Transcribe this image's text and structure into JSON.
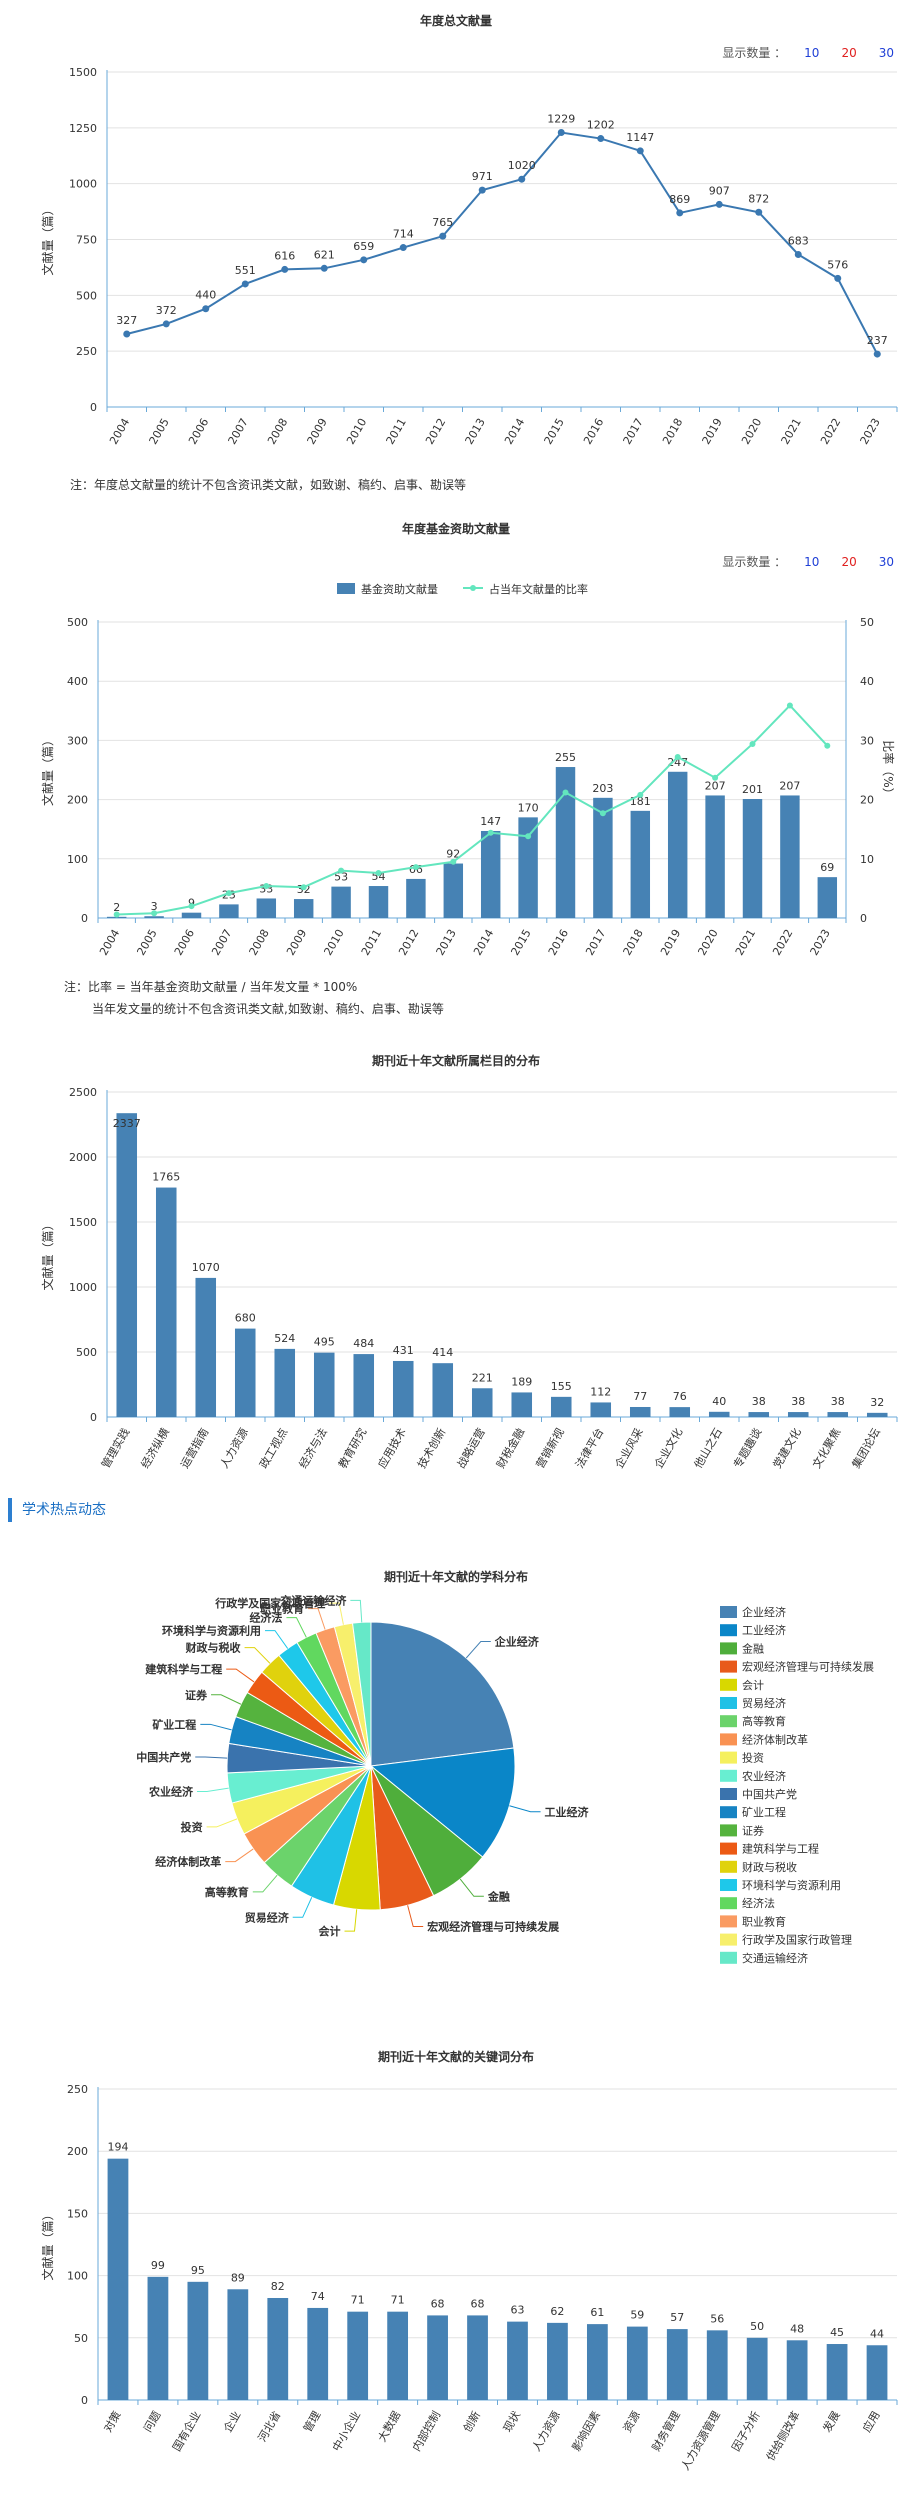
{
  "chart_data": [
    {
      "type": "line",
      "title": "年度总文献量",
      "ylabel": "文献量（篇）",
      "xlabel": "",
      "ylim": [
        0,
        1500
      ],
      "yticks": [
        0,
        250,
        500,
        750,
        1000,
        1250,
        1500
      ],
      "categories": [
        "2004",
        "2005",
        "2006",
        "2007",
        "2008",
        "2009",
        "2010",
        "2011",
        "2012",
        "2013",
        "2014",
        "2015",
        "2016",
        "2017",
        "2018",
        "2019",
        "2020",
        "2021",
        "2022",
        "2023"
      ],
      "values": [
        327,
        372,
        440,
        551,
        616,
        621,
        659,
        714,
        765,
        971,
        1020,
        1229,
        1202,
        1147,
        869,
        907,
        872,
        683,
        576,
        237
      ],
      "color": "#3a78b1"
    },
    {
      "type": "bar",
      "title": "年度基金资助文献量",
      "ylabel": "文献量（篇）",
      "y2label": "比率（%）",
      "ylim": [
        0,
        500
      ],
      "y2lim": [
        0,
        50
      ],
      "yticks": [
        0,
        100,
        200,
        300,
        400,
        500
      ],
      "y2ticks": [
        0,
        10,
        20,
        30,
        40,
        50
      ],
      "categories": [
        "2004",
        "2005",
        "2006",
        "2007",
        "2008",
        "2009",
        "2010",
        "2011",
        "2012",
        "2013",
        "2014",
        "2015",
        "2016",
        "2017",
        "2018",
        "2019",
        "2020",
        "2021",
        "2022",
        "2023"
      ],
      "series": [
        {
          "name": "基金资助文献量",
          "type": "bar",
          "color": "#4682b4",
          "values": [
            2,
            3,
            9,
            23,
            33,
            32,
            53,
            54,
            66,
            92,
            147,
            170,
            255,
            203,
            181,
            247,
            207,
            201,
            207,
            69
          ]
        },
        {
          "name": "占当年文献量的比率",
          "type": "line",
          "color": "#63e6be",
          "values": [
            0.6,
            0.8,
            2.0,
            4.2,
            5.4,
            5.2,
            8.0,
            7.6,
            8.6,
            9.5,
            14.4,
            13.8,
            21.2,
            17.7,
            20.8,
            27.2,
            23.7,
            29.4,
            35.9,
            29.1
          ]
        }
      ]
    },
    {
      "type": "bar",
      "title": "期刊近十年文献所属栏目的分布",
      "ylabel": "文献量（篇）",
      "ylim": [
        0,
        2500
      ],
      "yticks": [
        0,
        500,
        1000,
        1500,
        2000,
        2500
      ],
      "categories": [
        "管理实践",
        "经济纵横",
        "运营指南",
        "人力资源",
        "政工视点",
        "经济与法",
        "教育研究",
        "应用技术",
        "技术创新",
        "战略运营",
        "财税金融",
        "营销新视",
        "法律平台",
        "企业风采",
        "企业文化",
        "他山之石",
        "专题趣谈",
        "党建文化",
        "文化聚焦",
        "集团论坛"
      ],
      "values": [
        2337,
        1765,
        1070,
        680,
        524,
        495,
        484,
        431,
        414,
        221,
        189,
        155,
        112,
        77,
        76,
        40,
        38,
        38,
        38,
        32
      ],
      "color": "#4682b4"
    },
    {
      "type": "pie",
      "title": "期刊近十年文献的学科分布",
      "labels": [
        "企业经济",
        "工业经济",
        "金融",
        "宏观经济管理与可持续发展",
        "会计",
        "贸易经济",
        "高等教育",
        "经济体制改革",
        "投资",
        "农业经济",
        "中国共产党",
        "矿业工程",
        "证券",
        "建筑科学与工程",
        "财政与税收",
        "环境科学与资源利用",
        "经济法",
        "职业教育",
        "行政学及国家行政管理",
        "交通运输经济"
      ],
      "values": [
        22.5,
        12.6,
        6.8,
        6.0,
        5.1,
        5.0,
        3.9,
        3.8,
        3.6,
        3.3,
        3.2,
        3.0,
        2.9,
        2.7,
        2.6,
        2.4,
        2.3,
        2.1,
        2.0,
        2.0
      ],
      "colors": [
        "#4682b4",
        "#0a86c8",
        "#4fae3b",
        "#e85a1b",
        "#d8d800",
        "#1fc1e6",
        "#6bd36b",
        "#f99253",
        "#f5f05e",
        "#68eed1",
        "#3a73ad",
        "#1683c3",
        "#55b33e",
        "#ec5a14",
        "#e0d20d",
        "#1ec8ea",
        "#61d85f",
        "#fa9b62",
        "#f7ef6c",
        "#66e8c8"
      ]
    },
    {
      "type": "bar",
      "title": "期刊近十年文献的关键词分布",
      "ylabel": "文献量（篇）",
      "ylim": [
        0,
        250
      ],
      "yticks": [
        0,
        50,
        100,
        150,
        200,
        250
      ],
      "categories": [
        "对策",
        "问题",
        "国有企业",
        "企业",
        "河北省",
        "管理",
        "中小企业",
        "大数据",
        "内部控制",
        "创新",
        "现状",
        "人力资源",
        "影响因素",
        "资源",
        "财务管理",
        "人力资源管理",
        "因子分析",
        "供给侧改革",
        "发展",
        "应用"
      ],
      "values": [
        194,
        99,
        95,
        89,
        82,
        74,
        71,
        71,
        68,
        68,
        63,
        62,
        61,
        59,
        57,
        56,
        50,
        48,
        45,
        44
      ],
      "color": "#4682b4"
    }
  ],
  "ui": {
    "count_label": "显示数量 ：",
    "count_options": [
      "10",
      "20",
      "30"
    ],
    "note1": "注：年度总文献量的统计不包含资讯类文献，如致谢、稿约、启事、勘误等",
    "note2_line1": "注：比率 = 当年基金资助文献量 / 当年发文量 * 100%",
    "note2_line2": "当年发文量的统计不包含资讯类文献,如致谢、稿约、启事、勘误等",
    "section_title": "学术热点动态"
  }
}
